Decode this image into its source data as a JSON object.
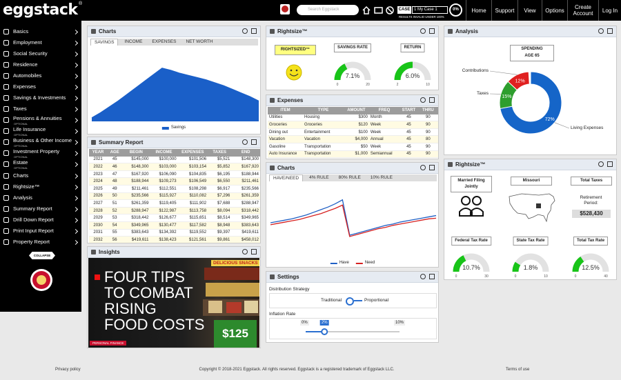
{
  "header": {
    "logo": "eggstack",
    "logo_mark": "®",
    "search_placeholder": "Search Eggstack",
    "case_label": "CASE",
    "case_value": "1 My Case 1",
    "results_note": "RESULTS INVALID UNDER 100%",
    "progress": "0%",
    "nav": [
      "Home",
      "Support",
      "View",
      "Options",
      "Create Account",
      "Log In"
    ]
  },
  "sidebar": {
    "items": [
      {
        "label": "Basics"
      },
      {
        "label": "Employment"
      },
      {
        "label": "Social Security"
      },
      {
        "label": "Residence"
      },
      {
        "label": "Automobiles"
      },
      {
        "label": "Expenses"
      },
      {
        "label": "Savings & Investments"
      },
      {
        "label": "Taxes"
      },
      {
        "label": "Pensions & Annuities",
        "note": "OPTIONAL"
      },
      {
        "label": "Life Insurance",
        "note": "OPTIONAL"
      },
      {
        "label": "Business & Other Income",
        "note": "OPTIONAL"
      },
      {
        "label": "Investment Property",
        "note": "OPTIONAL"
      },
      {
        "label": "Estate",
        "note": "OPTIONAL"
      },
      {
        "label": "Charts"
      },
      {
        "label": "Rightsize™"
      },
      {
        "label": "Analysis"
      },
      {
        "label": "Summary Report"
      },
      {
        "label": "Drill Down Report"
      },
      {
        "label": "Print Input Report"
      },
      {
        "label": "Property Report"
      }
    ],
    "collapse": "COLLAPSE"
  },
  "savings_chart": {
    "type": "area",
    "title": "Charts",
    "tabs": [
      "SAVINGS",
      "INCOME",
      "EXPENSES",
      "NET WORTH"
    ],
    "series": [
      {
        "name": "Savings",
        "color": "#1a5fc8",
        "values": [
          5,
          12,
          20,
          28,
          37,
          46,
          55,
          64,
          73,
          70,
          66,
          63,
          60,
          57,
          53,
          49,
          44,
          39,
          34,
          28
        ]
      }
    ],
    "ylim": [
      0,
      100
    ]
  },
  "summary_report": {
    "title": "Summary Report",
    "columns": [
      "YEAR",
      "AGE",
      "BEGIN",
      "INCOME",
      "EXPENSES",
      "TAXES",
      "END"
    ],
    "rows": [
      [
        "2021",
        "45",
        "$145,000",
        "$100,000",
        "$101,506",
        "$5,521",
        "$148,300"
      ],
      [
        "2022",
        "46",
        "$148,300",
        "$103,000",
        "$103,154",
        "$5,852",
        "$167,920"
      ],
      [
        "2023",
        "47",
        "$167,920",
        "$106,090",
        "$104,835",
        "$6,195",
        "$188,944"
      ],
      [
        "2024",
        "48",
        "$188,944",
        "$109,273",
        "$106,549",
        "$6,550",
        "$211,461"
      ],
      [
        "2025",
        "49",
        "$211,461",
        "$112,551",
        "$108,298",
        "$6,917",
        "$235,566"
      ],
      [
        "2026",
        "50",
        "$235,566",
        "$115,927",
        "$110,082",
        "$7,296",
        "$261,359"
      ],
      [
        "2027",
        "51",
        "$261,359",
        "$119,405",
        "$111,902",
        "$7,688",
        "$288,947"
      ],
      [
        "2028",
        "52",
        "$288,947",
        "$122,987",
        "$113,758",
        "$8,094",
        "$318,442"
      ],
      [
        "2029",
        "53",
        "$318,442",
        "$126,677",
        "$115,651",
        "$8,514",
        "$349,965"
      ],
      [
        "2030",
        "54",
        "$349,965",
        "$130,477",
        "$117,582",
        "$8,948",
        "$383,643"
      ],
      [
        "2031",
        "55",
        "$383,643",
        "$134,392",
        "$119,552",
        "$9,397",
        "$419,611"
      ],
      [
        "2032",
        "56",
        "$419,611",
        "$138,423",
        "$121,561",
        "$9,861",
        "$458,012"
      ]
    ]
  },
  "insights": {
    "title": "Insights",
    "headline": [
      "FOUR TIPS",
      "TO COMBAT",
      "RISING",
      "FOOD COSTS"
    ],
    "tag": "PERSONAL FINANCE",
    "photo_texts": [
      "DELICIOUS SNACKS",
      "$125"
    ]
  },
  "rightsize": {
    "title": "Rightsize™",
    "status": "RIGHTSIZED™",
    "gauges": [
      {
        "title": "SAVINGS RATE",
        "value": 7.1,
        "value_label": "7.1%",
        "min": 0,
        "max": 20
      },
      {
        "title": "RETURN",
        "value": 6.0,
        "value_label": "6.0%",
        "min": 2,
        "max": 10
      }
    ]
  },
  "expenses": {
    "title": "Expenses",
    "columns": [
      "ITEM",
      "TYPE",
      "AMOUNT",
      "FREQ",
      "START",
      "THRU"
    ],
    "rows": [
      [
        "Utilities",
        "Housing",
        "$300",
        "Month",
        "45",
        "90"
      ],
      [
        "Groceries",
        "Groceries",
        "$120",
        "Week",
        "45",
        "90"
      ],
      [
        "Dining out",
        "Entertainment",
        "$100",
        "Week",
        "45",
        "90"
      ],
      [
        "Vacation",
        "Vacation",
        "$4,000",
        "Annual",
        "45",
        "80"
      ],
      [
        "Gasoline",
        "Transportation",
        "$50",
        "Week",
        "45",
        "90"
      ],
      [
        "Auto Insurance",
        "Transportation",
        "$1,000",
        "Semiannual",
        "45",
        "90"
      ]
    ]
  },
  "need_chart": {
    "type": "line",
    "title": "Charts",
    "tabs": [
      "HAVE/NEED",
      "4% RULE",
      "80% RULE",
      "10% RULE"
    ],
    "series": [
      {
        "name": "Have",
        "color": "#1f5fc4",
        "values": [
          40,
          42,
          44,
          46,
          49,
          52,
          56,
          60,
          64,
          69,
          75,
          21,
          24,
          27,
          30,
          33,
          36,
          38,
          41,
          43,
          45,
          47,
          49,
          51
        ]
      },
      {
        "name": "Need",
        "color": "#d62020",
        "values": [
          37,
          39,
          41,
          43,
          45,
          48,
          51,
          54,
          58,
          62,
          67,
          19,
          22,
          25,
          28,
          31,
          33,
          36,
          38,
          40,
          42,
          44,
          46,
          47
        ]
      }
    ],
    "ylim": [
      0,
      100
    ]
  },
  "settings": {
    "title": "Settings",
    "distribution_label": "Distribution Strategy",
    "options": [
      "Traditional",
      "Proportional"
    ],
    "inflation_label": "Inflation Rate",
    "inflation": {
      "value": 2,
      "value_label": "2%",
      "min": {
        "value": 0,
        "label": "0%"
      },
      "max": {
        "value": 10,
        "label": "10%"
      }
    }
  },
  "analysis": {
    "type": "pie",
    "title": "Analysis",
    "button": [
      "SPENDING",
      "AGE 65"
    ],
    "categories": [
      "Living Expenses",
      "Taxes",
      "Contributions"
    ],
    "values": [
      72,
      15,
      12
    ],
    "value_labels": [
      "72%",
      "15%",
      "12%"
    ],
    "colors": [
      "#1565c8",
      "#2e9e2e",
      "#e02020"
    ]
  },
  "tax": {
    "title": "Rightsize™",
    "filing": "Married Filing Jointly",
    "state": "Missouri",
    "total_button": "Total Taxes",
    "retirement_label": "Retirement Period:",
    "retirement_value": "$528,430",
    "gauges": [
      {
        "title": "Federal Tax Rate",
        "value": 10.7,
        "value_label": "10.7%",
        "min": 0,
        "max": 30
      },
      {
        "title": "State Tax Rate",
        "value": 1.8,
        "value_label": "1.8%",
        "min": 0,
        "max": 10
      },
      {
        "title": "Total Tax Rate",
        "value": 12.5,
        "value_label": "12.5%",
        "min": 0,
        "max": 40
      }
    ]
  },
  "footer": {
    "privacy": "Privacy policy",
    "copyright": "Copyright © 2018-2021 Eggstack. All rights reserved. Eggstack is a registered trademark of Eggstack LLC.",
    "terms": "Terms of use"
  }
}
